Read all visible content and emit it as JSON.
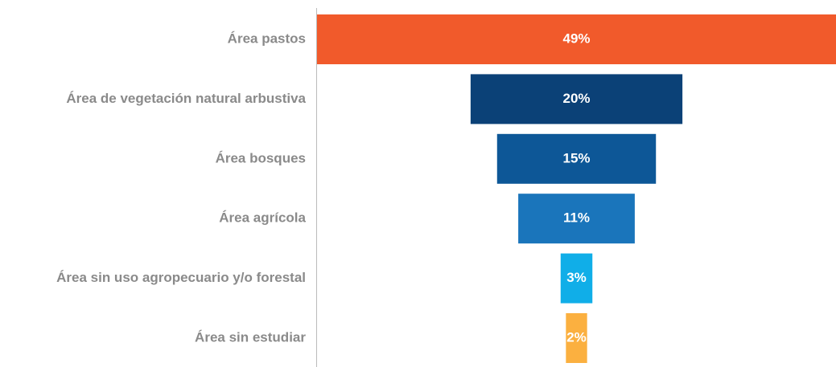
{
  "chart_data": {
    "type": "funnel",
    "categories": [
      "Área pastos",
      "Área de vegetación natural arbustiva",
      "Área bosques",
      "Área agrícola",
      "Área sin uso agropecuario y/o forestal",
      "Área sin estudiar"
    ],
    "values": [
      49,
      20,
      15,
      11,
      3,
      2
    ],
    "value_labels": [
      "49%",
      "20%",
      "15%",
      "11%",
      "3%",
      "2%"
    ],
    "colors": [
      "#f15a2b",
      "#0b4177",
      "#0d5797",
      "#1a75bb",
      "#10aee8",
      "#fbb040"
    ]
  }
}
